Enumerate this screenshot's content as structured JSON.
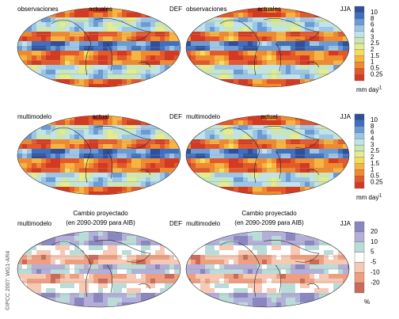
{
  "rows": [
    {
      "panels": [
        {
          "label_left": "observaciones",
          "label_mid": "actuales",
          "season": "DEF"
        },
        {
          "label_left": "observaciones",
          "label_mid": "actuales",
          "season": "JJA"
        }
      ],
      "colorbar": {
        "ticks": [
          "10",
          "8",
          "6",
          "4",
          "3",
          "2.5",
          "2",
          "1.5",
          "1",
          "0.5",
          "0.25"
        ],
        "unit": "mm day",
        "unit_sup": "-1"
      }
    },
    {
      "panels": [
        {
          "label_left": "multimodelo",
          "label_mid": "actual",
          "season": "DEF"
        },
        {
          "label_left": "multimodelo",
          "label_mid": "actual",
          "season": "JJA"
        }
      ],
      "colorbar": {
        "ticks": [
          "10",
          "8",
          "6",
          "4",
          "3",
          "2.5",
          "2",
          "1.5",
          "1",
          "0.5",
          "0.25"
        ],
        "unit": "mm day",
        "unit_sup": "-1"
      }
    },
    {
      "panels": [
        {
          "title": "Cambio proyectado",
          "subtitle": "(en 2090-2099 para AIB)",
          "label_left": "multimodelo",
          "season": "DEF"
        },
        {
          "title": "Cambio proyectado",
          "subtitle": "(en 2090-2099 para AIB)",
          "label_left": "multimodelo",
          "season": "JJA"
        }
      ],
      "colorbar": {
        "ticks": [
          "20",
          "10",
          "5",
          "-5",
          "-10",
          "-20"
        ],
        "unit": "%"
      }
    }
  ],
  "credit": "©IPCC 2007: WG1-AR4"
}
